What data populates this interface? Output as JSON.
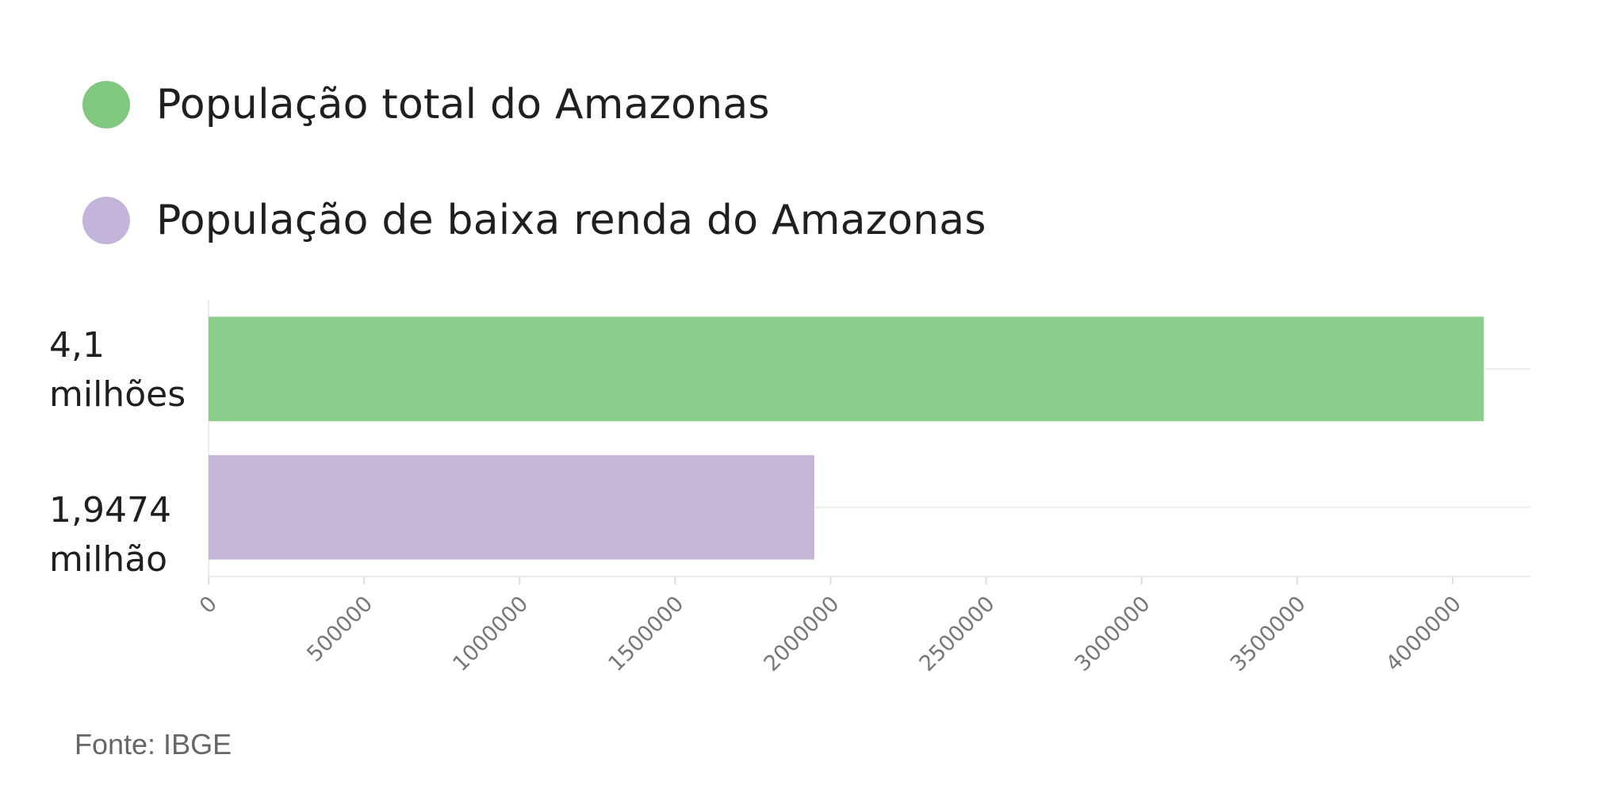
{
  "chart_data": {
    "type": "bar",
    "orientation": "horizontal",
    "categories": [
      "4,1\nmilhões",
      "1,9474\nmilhão"
    ],
    "series": [
      {
        "name": "População total do Amazonas",
        "color": "#8bce8c",
        "swatch_color": "#80c77f"
      },
      {
        "name": "População de baixa renda do Amazonas",
        "color": "#c4b5d9",
        "swatch_color": "#c3b4da"
      }
    ],
    "values": [
      4100000,
      1947400
    ],
    "xlim": [
      0,
      4250000
    ],
    "xticks": [
      0,
      500000,
      1000000,
      1500000,
      2000000,
      2500000,
      3000000,
      3500000,
      4000000
    ],
    "xtick_labels": [
      "0",
      "500000",
      "1000000",
      "1500000",
      "2000000",
      "2500000",
      "3000000",
      "3500000",
      "4000000"
    ],
    "grid": true,
    "legend_position": "top-left"
  },
  "source": "Fonte: IBGE"
}
